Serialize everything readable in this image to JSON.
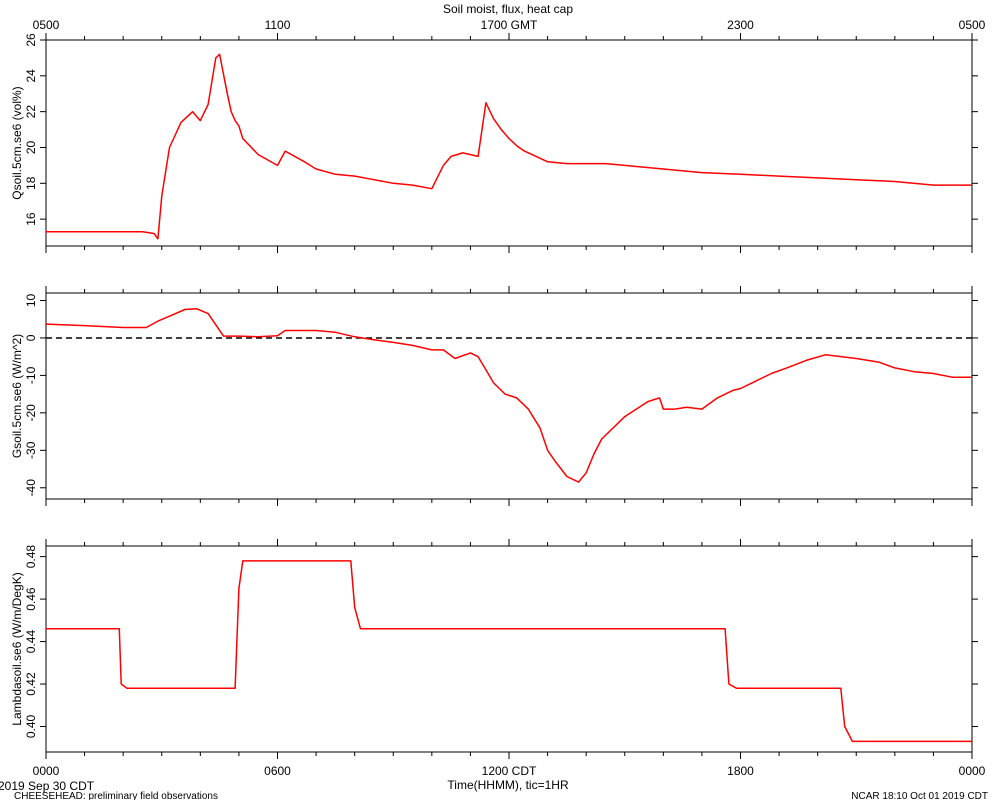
{
  "title": "Soil moist, flux, heat cap",
  "footer": {
    "start_date": "2019 Sep 30 CDT",
    "project": "CHEESEHEAD: preliminary field observations",
    "stamp": "NCAR 18:10 Oct 01 2019 CDT"
  },
  "colors": {
    "series": "#ff0000",
    "axes": "#000000",
    "zero_line": "#000000"
  },
  "chart_data": [
    {
      "type": "line",
      "series": [
        {
          "name": "",
          "x": [
            0,
            1,
            2,
            2.5,
            2.8,
            2.9,
            3.0,
            3.2,
            3.5,
            3.8,
            4.0,
            4.2,
            4.4,
            4.5,
            4.7,
            4.8,
            4.9,
            5.0,
            5.1,
            5.5,
            6.0,
            6.2,
            6.7,
            7.0,
            7.5,
            8.0,
            8.5,
            9.0,
            9.5,
            10.0,
            10.3,
            10.5,
            10.8,
            11.0,
            11.2,
            11.4,
            11.6,
            11.8,
            12.0,
            12.2,
            12.4,
            12.6,
            12.8,
            13.0,
            13.5,
            14.0,
            14.5,
            15.0,
            16.0,
            17.0,
            18.0,
            19.0,
            20.0,
            21.0,
            22.0,
            23.0,
            24.0
          ],
          "y": [
            15.3,
            15.3,
            15.3,
            15.3,
            15.2,
            14.9,
            17.3,
            20.0,
            21.4,
            22.0,
            21.5,
            22.4,
            25.0,
            25.2,
            23.0,
            22.0,
            21.5,
            21.2,
            20.5,
            19.6,
            19.0,
            19.8,
            19.2,
            18.8,
            18.5,
            18.4,
            18.2,
            18.0,
            17.9,
            17.7,
            19.0,
            19.5,
            19.7,
            19.6,
            19.5,
            22.5,
            21.6,
            21.0,
            20.5,
            20.1,
            19.8,
            19.6,
            19.4,
            19.2,
            19.1,
            19.1,
            19.1,
            19.0,
            18.8,
            18.6,
            18.5,
            18.4,
            18.3,
            18.2,
            18.1,
            17.9,
            17.9
          ]
        }
      ],
      "xlim": [
        0,
        24
      ],
      "ylim": [
        14.5,
        26
      ],
      "ylabel": "Qsoil.5cm.se6 (vol%)",
      "yticks": [
        16,
        18,
        20,
        22,
        24,
        26
      ],
      "grid": false
    },
    {
      "type": "line",
      "series": [
        {
          "name": "",
          "x": [
            0,
            1,
            2,
            2.6,
            2.9,
            3.2,
            3.6,
            3.9,
            4.2,
            4.4,
            4.6,
            5,
            5.5,
            6.0,
            6.2,
            7.0,
            7.5,
            8.0,
            8.5,
            9.0,
            9.5,
            10.0,
            10.3,
            10.6,
            11.0,
            11.2,
            11.4,
            11.6,
            11.9,
            12.2,
            12.5,
            12.8,
            13.0,
            13.2,
            13.5,
            13.8,
            14.0,
            14.2,
            14.4,
            14.6,
            15.0,
            15.3,
            15.6,
            15.9,
            16.0,
            16.3,
            16.6,
            17.0,
            17.4,
            17.8,
            18.0,
            18.3,
            18.8,
            19.2,
            19.7,
            20.2,
            21.0,
            21.6,
            22.0,
            22.5,
            23.0,
            23.5,
            24.0
          ],
          "y": [
            3.7,
            3.3,
            2.8,
            2.8,
            4.5,
            5.8,
            7.6,
            7.8,
            6.5,
            3.5,
            0.5,
            0.5,
            0.3,
            0.6,
            2.0,
            2.0,
            1.5,
            0.3,
            -0.5,
            -1.2,
            -2.0,
            -3.2,
            -3.2,
            -5.5,
            -4.0,
            -5.0,
            -8.5,
            -12.0,
            -15.0,
            -16.0,
            -19.0,
            -24.0,
            -30.0,
            -33.0,
            -37.0,
            -38.5,
            -36.0,
            -31.0,
            -27.0,
            -25.0,
            -21.0,
            -19.0,
            -17.0,
            -16.0,
            -19.0,
            -19.0,
            -18.5,
            -19.0,
            -16.0,
            -14.0,
            -13.5,
            -12.0,
            -9.5,
            -8.0,
            -6.0,
            -4.5,
            -5.5,
            -6.5,
            -8.0,
            -9.0,
            -9.5,
            -10.5,
            -10.5
          ]
        }
      ],
      "xlim": [
        0,
        24
      ],
      "ylim": [
        -43,
        12
      ],
      "ylabel": "Gsoil.5cm.se6 (W/m^2)",
      "yticks": [
        -40,
        -30,
        -20,
        -10,
        0,
        10
      ],
      "reference_line_y": 0,
      "grid": false
    },
    {
      "type": "line",
      "series": [
        {
          "name": "",
          "x": [
            0,
            1.9,
            1.95,
            2.1,
            4.9,
            5.0,
            5.1,
            7.9,
            8.0,
            8.15,
            17.6,
            17.7,
            17.9,
            20.6,
            20.7,
            20.9,
            24.0
          ],
          "y": [
            0.446,
            0.446,
            0.42,
            0.418,
            0.418,
            0.465,
            0.478,
            0.478,
            0.456,
            0.446,
            0.446,
            0.42,
            0.418,
            0.418,
            0.4,
            0.393,
            0.393
          ]
        }
      ],
      "xlim": [
        0,
        24
      ],
      "ylim": [
        0.388,
        0.485
      ],
      "ylabel": "Lambdasoil.se6 (W/m/DegK)",
      "yticks": [
        0.4,
        0.42,
        0.44,
        0.46,
        0.48
      ],
      "grid": false
    }
  ],
  "axes": {
    "top_ticks": {
      "positions": [
        0,
        6,
        12,
        18,
        24
      ],
      "labels": [
        "0500",
        "1100",
        "1700 GMT",
        "2300",
        "0500"
      ]
    },
    "bottom_ticks": {
      "positions": [
        0,
        6,
        12,
        18,
        24
      ],
      "labels": [
        "0000",
        "0600",
        "1200 CDT",
        "1800",
        "0000"
      ]
    },
    "xlabel": "Time(HHMM), tic=1HR"
  }
}
